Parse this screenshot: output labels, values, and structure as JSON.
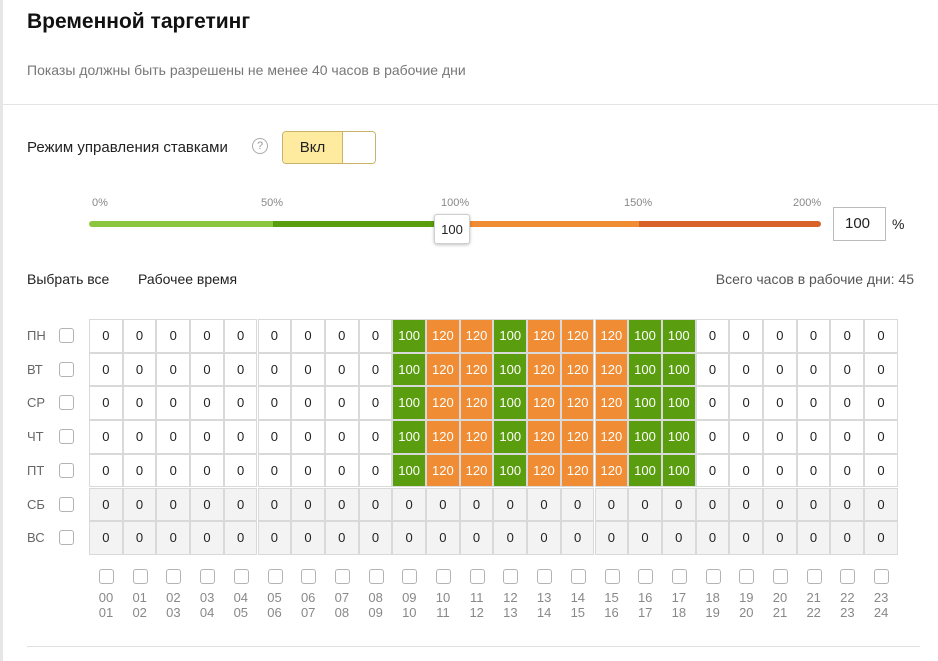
{
  "title": "Временной таргетинг",
  "subtitle": "Показы должны быть разрешены не менее 40 часов в рабочие дни",
  "bid_mode": {
    "label": "Режим управления ставками",
    "help_icon": "?",
    "toggle_label": "Вкл",
    "enabled": true
  },
  "slider": {
    "ticks": [
      "0%",
      "50%",
      "100%",
      "150%",
      "200%"
    ],
    "value": "100",
    "input_value": "100",
    "unit": "%",
    "colors": {
      "low": "#8cc63f",
      "mid": "#5a9e0f",
      "high": "#f08c33",
      "max": "#d9622b"
    }
  },
  "actions": {
    "select_all": "Выбрать все",
    "work_time": "Рабочее время"
  },
  "hours_total": "Всего часов в рабочие дни: 45",
  "days": [
    "ПН",
    "ВТ",
    "СР",
    "ЧТ",
    "ПТ",
    "СБ",
    "ВС"
  ],
  "hours_start": [
    "00",
    "01",
    "02",
    "03",
    "04",
    "05",
    "06",
    "07",
    "08",
    "09",
    "10",
    "11",
    "12",
    "13",
    "14",
    "15",
    "16",
    "17",
    "18",
    "19",
    "20",
    "21",
    "22",
    "23"
  ],
  "hours_end": [
    "01",
    "02",
    "03",
    "04",
    "05",
    "06",
    "07",
    "08",
    "09",
    "10",
    "11",
    "12",
    "13",
    "14",
    "15",
    "16",
    "17",
    "18",
    "19",
    "20",
    "21",
    "22",
    "23",
    "24"
  ],
  "colors": {
    "green": "#5a9e0f",
    "orange": "#f08c33"
  },
  "grid": [
    [
      "0",
      "0",
      "0",
      "0",
      "0",
      "0",
      "0",
      "0",
      "0",
      "100",
      "120",
      "120",
      "100",
      "120",
      "120",
      "120",
      "100",
      "100",
      "0",
      "0",
      "0",
      "0",
      "0",
      "0"
    ],
    [
      "0",
      "0",
      "0",
      "0",
      "0",
      "0",
      "0",
      "0",
      "0",
      "100",
      "120",
      "120",
      "100",
      "120",
      "120",
      "120",
      "100",
      "100",
      "0",
      "0",
      "0",
      "0",
      "0",
      "0"
    ],
    [
      "0",
      "0",
      "0",
      "0",
      "0",
      "0",
      "0",
      "0",
      "0",
      "100",
      "120",
      "120",
      "100",
      "120",
      "120",
      "120",
      "100",
      "100",
      "0",
      "0",
      "0",
      "0",
      "0",
      "0"
    ],
    [
      "0",
      "0",
      "0",
      "0",
      "0",
      "0",
      "0",
      "0",
      "0",
      "100",
      "120",
      "120",
      "100",
      "120",
      "120",
      "120",
      "100",
      "100",
      "0",
      "0",
      "0",
      "0",
      "0",
      "0"
    ],
    [
      "0",
      "0",
      "0",
      "0",
      "0",
      "0",
      "0",
      "0",
      "0",
      "100",
      "120",
      "120",
      "100",
      "120",
      "120",
      "120",
      "100",
      "100",
      "0",
      "0",
      "0",
      "0",
      "0",
      "0"
    ],
    [
      "0",
      "0",
      "0",
      "0",
      "0",
      "0",
      "0",
      "0",
      "0",
      "0",
      "0",
      "0",
      "0",
      "0",
      "0",
      "0",
      "0",
      "0",
      "0",
      "0",
      "0",
      "0",
      "0",
      "0"
    ],
    [
      "0",
      "0",
      "0",
      "0",
      "0",
      "0",
      "0",
      "0",
      "0",
      "0",
      "0",
      "0",
      "0",
      "0",
      "0",
      "0",
      "0",
      "0",
      "0",
      "0",
      "0",
      "0",
      "0",
      "0"
    ]
  ]
}
